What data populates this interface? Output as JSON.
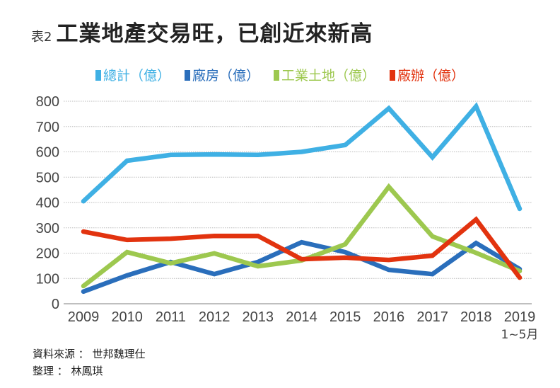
{
  "title": {
    "tag": "表2",
    "main": "工業地產交易旺，已創近來新高"
  },
  "footer": {
    "source": "資料來源 ： 世邦魏理仕",
    "editor": "整理 ： 林鳳琪"
  },
  "chart_data": {
    "type": "line",
    "title": "工業地產交易旺，已創近來新高",
    "categories": [
      "2009",
      "2010",
      "2011",
      "2012",
      "2013",
      "2014",
      "2015",
      "2016",
      "2017",
      "2018",
      "2019"
    ],
    "category_sublabels": {
      "2019": "1~5月"
    },
    "ylim": [
      0,
      800
    ],
    "yticks": [
      0,
      100,
      200,
      300,
      400,
      500,
      600,
      700,
      800
    ],
    "grid": true,
    "legend": "top",
    "series": [
      {
        "name": "總計（億）",
        "color": "#3fb0e4",
        "values": [
          405,
          565,
          588,
          590,
          588,
          600,
          627,
          772,
          579,
          780,
          375
        ]
      },
      {
        "name": "廠房（億）",
        "color": "#2a6ebb",
        "values": [
          48,
          112,
          165,
          117,
          165,
          243,
          204,
          134,
          117,
          240,
          137
        ]
      },
      {
        "name": "工業土地（億）",
        "color": "#9dc84f",
        "values": [
          70,
          204,
          160,
          199,
          148,
          171,
          235,
          462,
          266,
          201,
          129
        ]
      },
      {
        "name": "廠辦（億）",
        "color": "#e2330f",
        "values": [
          285,
          252,
          257,
          268,
          268,
          176,
          182,
          173,
          190,
          333,
          103
        ]
      }
    ]
  }
}
